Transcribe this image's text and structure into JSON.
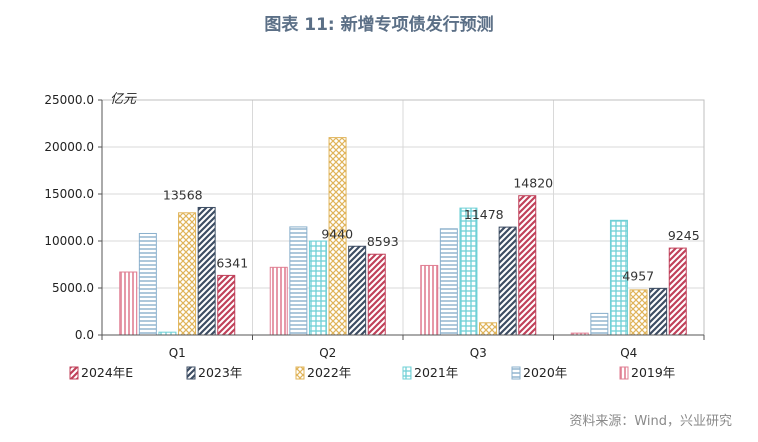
{
  "title": "图表 11: 新增专项债发行预测",
  "source": "资料来源：Wind，兴业研究",
  "colors": {
    "2024年E": "#c0415a",
    "2023年": "#3d4d63",
    "2022年": "#e0b45a",
    "2021年": "#6fd0d6",
    "2020年": "#8bb0cc",
    "2019年": "#e07f93"
  },
  "chart_data": {
    "type": "bar",
    "unit_label": "亿元",
    "categories": [
      "Q1",
      "Q2",
      "Q3",
      "Q4"
    ],
    "ylim": [
      0,
      25000
    ],
    "yticks": [
      "0.0",
      "5000.0",
      "10000.0",
      "15000.0",
      "20000.0",
      "25000.0"
    ],
    "grid": true,
    "legend_position": "bottom",
    "series": [
      {
        "name": "2019年",
        "values": [
          6700,
          7200,
          7400,
          200
        ],
        "labels": [
          null,
          null,
          null,
          null
        ]
      },
      {
        "name": "2020年",
        "values": [
          10800,
          11500,
          11300,
          2300
        ],
        "labels": [
          null,
          null,
          null,
          null
        ]
      },
      {
        "name": "2021年",
        "values": [
          300,
          10000,
          13500,
          12200
        ],
        "labels": [
          null,
          null,
          null,
          null
        ]
      },
      {
        "name": "2022年",
        "values": [
          13000,
          21000,
          1300,
          4800
        ],
        "labels": [
          null,
          null,
          null,
          null
        ]
      },
      {
        "name": "2023年",
        "values": [
          13568,
          9440,
          11478,
          4957
        ],
        "labels": [
          "13568",
          "9440",
          "11478",
          "4957"
        ]
      },
      {
        "name": "2024年E",
        "values": [
          6341,
          8593,
          14820,
          9245
        ],
        "labels": [
          "6341",
          "8593",
          "14820",
          "9245"
        ]
      }
    ],
    "legend": [
      "2024年E",
      "2023年",
      "2022年",
      "2021年",
      "2020年",
      "2019年"
    ]
  }
}
